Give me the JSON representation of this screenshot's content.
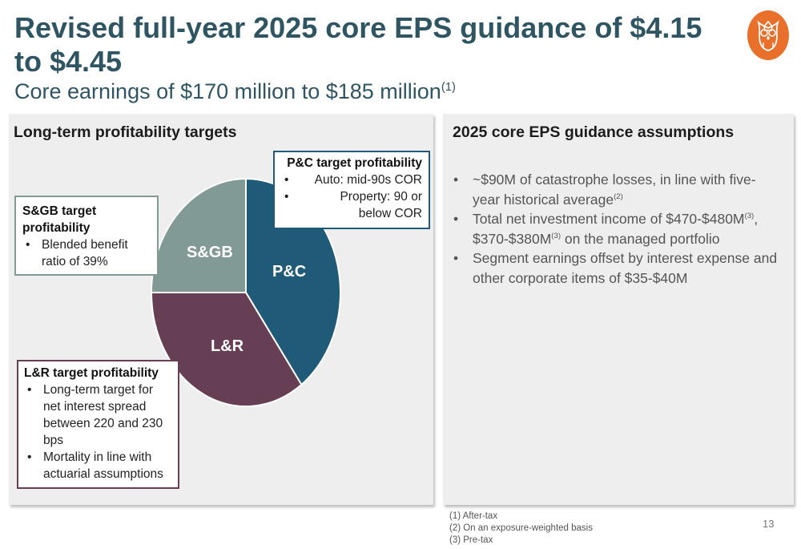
{
  "header": {
    "title": "Revised full-year 2025 core EPS guidance of $4.15 to $4.45",
    "subtitle": "Core earnings of $170 million to $185 million",
    "subtitle_note": "(1)"
  },
  "logo": {
    "icon": "owl-icon",
    "color": "#e8702a"
  },
  "left_panel": {
    "heading": "Long-term profitability targets",
    "pie": {
      "slices": [
        {
          "label": "P&C",
          "share": 0.4,
          "color": "#1f5a78"
        },
        {
          "label": "L&R",
          "share": 0.35,
          "color": "#673f55"
        },
        {
          "label": "S&GB",
          "share": 0.25,
          "color": "#829a95"
        }
      ]
    },
    "callouts": {
      "pc": {
        "title": "P&C target profitability",
        "items": [
          "Auto: mid-90s COR",
          "Property: 90 or below COR"
        ],
        "border_color": "#1f5a78"
      },
      "sgb": {
        "title": "S&GB target profitability",
        "items": [
          "Blended benefit ratio of 39%"
        ],
        "border_color": "#829a95"
      },
      "lr": {
        "title": "L&R target profitability",
        "items": [
          "Long-term target for net interest spread between 220 and 230 bps",
          "Mortality in line with actuarial assumptions"
        ],
        "border_color": "#673f55"
      }
    }
  },
  "right_panel": {
    "heading": "2025 core EPS guidance assumptions",
    "bullets": [
      {
        "parts": [
          {
            "t": "~$90M of catastrophe losses, in line with five-year historical average"
          },
          {
            "t": "(2)",
            "sup": true
          }
        ]
      },
      {
        "parts": [
          {
            "t": "Total net investment income of $470-$480M"
          },
          {
            "t": "(3)",
            "sup": true
          },
          {
            "t": ", $370-$380M"
          },
          {
            "t": "(3)",
            "sup": true
          },
          {
            "t": " on the managed portfolio"
          }
        ]
      },
      {
        "parts": [
          {
            "t": "Segment earnings offset by interest expense and other corporate items of $35-$40M"
          }
        ]
      }
    ]
  },
  "footnotes": [
    "(1) After-tax",
    "(2) On an exposure-weighted basis",
    "(3) Pre-tax"
  ],
  "page_number": "13"
}
